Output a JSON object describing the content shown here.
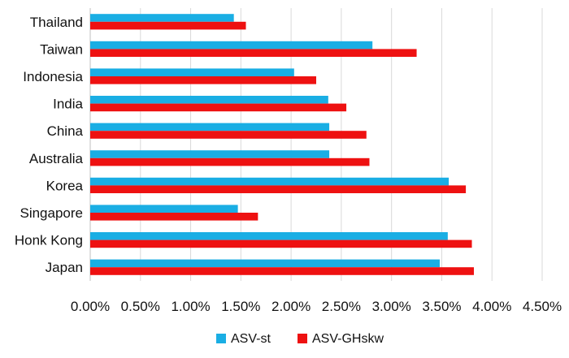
{
  "chart_data": {
    "type": "bar",
    "orientation": "horizontal",
    "categories": [
      "Thailand",
      "Taiwan",
      "Indonesia",
      "India",
      "China",
      "Australia",
      "Korea",
      "Singapore",
      "Honk Kong",
      "Japan"
    ],
    "series": [
      {
        "name": "ASV-st",
        "color": "#1aaee4",
        "values": [
          1.43,
          2.81,
          2.03,
          2.37,
          2.38,
          2.38,
          3.57,
          1.47,
          3.56,
          3.48
        ]
      },
      {
        "name": "ASV-GHskw",
        "color": "#ee1111",
        "values": [
          1.55,
          3.25,
          2.25,
          2.55,
          2.75,
          2.78,
          3.74,
          1.67,
          3.8,
          3.82
        ]
      }
    ],
    "xlim": [
      0,
      4.5
    ],
    "xticks": [
      "0.00%",
      "0.50%",
      "1.00%",
      "1.50%",
      "2.00%",
      "2.50%",
      "3.00%",
      "3.50%",
      "4.00%",
      "4.50%"
    ],
    "grid": "vertical",
    "legend": "bottom",
    "title": "",
    "xlabel": "",
    "ylabel": ""
  }
}
